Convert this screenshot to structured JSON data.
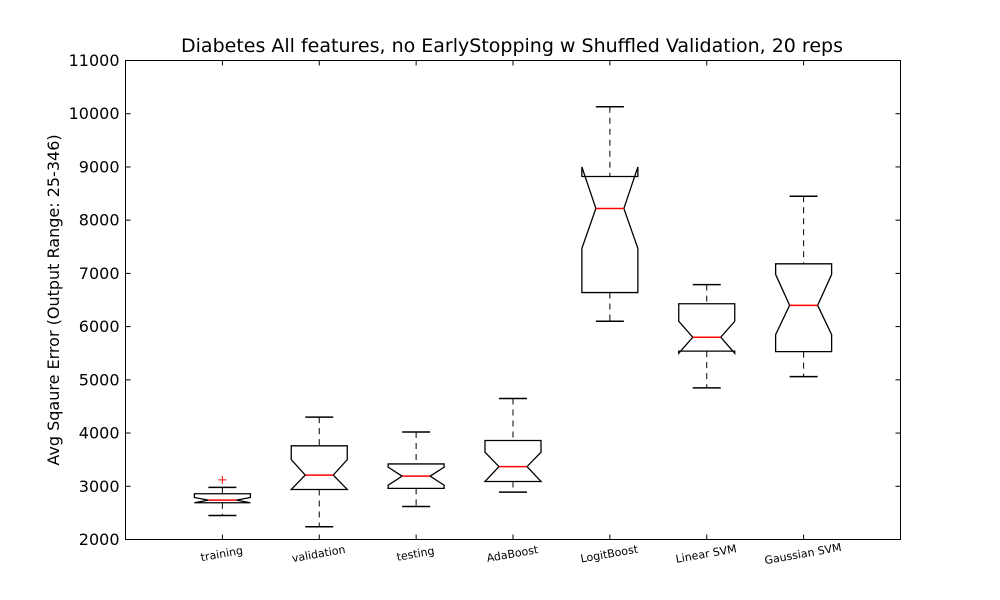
{
  "chart_data": {
    "type": "box",
    "title": "Diabetes All features, no EarlyStopping w Shuffled Validation, 20 reps",
    "xlabel": "",
    "ylabel": "Avg Sqaure Error (Output Range: 25-346)",
    "ylim": [
      2000,
      11000
    ],
    "yticks": [
      2000,
      3000,
      4000,
      5000,
      6000,
      7000,
      8000,
      9000,
      10000,
      11000
    ],
    "categories": [
      "training",
      "validation",
      "testing",
      "AdaBoost",
      "LogitBoost",
      "Linear SVM",
      "Gaussian SVM"
    ],
    "notched": true,
    "grid": false,
    "colors": {
      "box": "#000000",
      "median": "#ff0000",
      "outlier": "#ff0000"
    },
    "boxes": [
      {
        "name": "training",
        "whisker_low": 2450,
        "q1": 2690,
        "median": 2740,
        "q3": 2860,
        "whisker_high": 2980,
        "notch_low": 2690,
        "notch_high": 2790,
        "outliers": [
          3120
        ]
      },
      {
        "name": "validation",
        "whisker_low": 2240,
        "q1": 2940,
        "median": 3210,
        "q3": 3760,
        "whisker_high": 4300,
        "notch_low": 2940,
        "notch_high": 3500,
        "outliers": []
      },
      {
        "name": "testing",
        "whisker_low": 2620,
        "q1": 2960,
        "median": 3190,
        "q3": 3420,
        "whisker_high": 4020,
        "notch_low": 3020,
        "notch_high": 3360,
        "outliers": []
      },
      {
        "name": "AdaBoost",
        "whisker_low": 2890,
        "q1": 3090,
        "median": 3370,
        "q3": 3860,
        "whisker_high": 4650,
        "notch_low": 3090,
        "notch_high": 3640,
        "outliers": []
      },
      {
        "name": "LogitBoost",
        "whisker_low": 6100,
        "q1": 6640,
        "median": 8220,
        "q3": 8820,
        "whisker_high": 10130,
        "notch_low": 7470,
        "notch_high": 9000,
        "outliers": []
      },
      {
        "name": "Linear SVM",
        "whisker_low": 4850,
        "q1": 5540,
        "median": 5800,
        "q3": 6430,
        "whisker_high": 6790,
        "notch_low": 5500,
        "notch_high": 6100,
        "outliers": []
      },
      {
        "name": "Gaussian SVM",
        "whisker_low": 5060,
        "q1": 5530,
        "median": 6400,
        "q3": 7180,
        "whisker_high": 8450,
        "notch_low": 5850,
        "notch_high": 6980,
        "outliers": []
      }
    ]
  }
}
